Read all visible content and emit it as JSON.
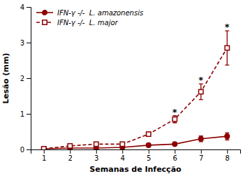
{
  "chart_data": {
    "type": "line",
    "xlabel": "Semanas de Infecção",
    "ylabel": "Lesão (mm)",
    "x": [
      1,
      2,
      3,
      4,
      5,
      6,
      7,
      8
    ],
    "color": "#8B0000",
    "series": [
      {
        "name": "IFN-γ -/-  L. amazonensis",
        "marker": "circle",
        "line_style": "solid",
        "values": [
          0.02,
          0.04,
          0.04,
          0.06,
          0.12,
          0.15,
          0.3,
          0.37
        ],
        "errors": [
          0.02,
          0.02,
          0.02,
          0.02,
          0.04,
          0.04,
          0.08,
          0.1
        ]
      },
      {
        "name": "IFN-γ -/-  L. major",
        "marker": "square-open",
        "line_style": "dashed",
        "values": [
          0.02,
          0.1,
          0.15,
          0.15,
          0.43,
          0.85,
          1.62,
          2.85
        ],
        "errors": [
          0.02,
          0.04,
          0.05,
          0.04,
          0.06,
          0.1,
          0.22,
          0.48
        ]
      }
    ],
    "annotations": [
      {
        "text": "*",
        "x": 6
      },
      {
        "text": "*",
        "x": 7
      },
      {
        "text": "*",
        "x": 8
      }
    ],
    "xlim": [
      0.5,
      8.5
    ],
    "xticks": [
      1,
      2,
      3,
      4,
      5,
      6,
      7,
      8
    ],
    "ylim": [
      0,
      4.0
    ],
    "yticks": [
      0,
      1,
      2,
      3,
      4
    ],
    "legend": "upper left"
  }
}
